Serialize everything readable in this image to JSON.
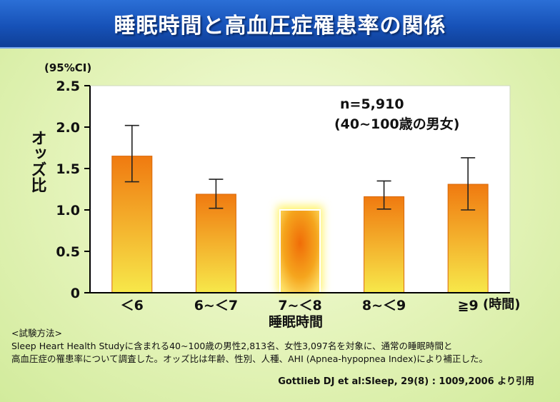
{
  "title": "睡眠時間と高血圧症罹患率の関係",
  "ci_note": "(95%CI)",
  "chart_data": {
    "type": "bar",
    "categories": [
      "＜6",
      "6~＜7",
      "7~＜8",
      "8~＜9",
      "≧9"
    ],
    "values": [
      1.65,
      1.19,
      1.0,
      1.16,
      1.31
    ],
    "ci_low": [
      1.34,
      1.02,
      null,
      1.01,
      1.0
    ],
    "ci_high": [
      2.02,
      1.37,
      null,
      1.35,
      1.63
    ],
    "reference_category": "7~＜8",
    "ylabel": "オッズ比",
    "xlabel": "睡眠時間",
    "x_unit": "(時間)",
    "ylim": [
      0,
      2.5
    ],
    "yticks": [
      "0",
      "0.5",
      "1.0",
      "1.5",
      "2.0",
      "2.5"
    ],
    "ytick_values": [
      0,
      0.5,
      1.0,
      1.5,
      2.0,
      2.5
    ],
    "annotation_line1": "n=5,910",
    "annotation_line2": "(40~100歳の男女)",
    "grid": false,
    "colors": {
      "bar_top": "#f07a10",
      "bar_bottom": "#f7e84a",
      "reference_glow": "#fff89a",
      "plot_bg": "#ffffff"
    }
  },
  "method": {
    "heading": "<試験方法>",
    "line1": "Sleep Heart Health Studyに含まれる40~100歳の男性2,813名、女性3,097名を対象に、通常の睡眠時間と",
    "line2": "高血圧症の罹患率について調査した。オッズ比は年齢、性別、人種、AHI (Apnea-hypopnea Index)により補正した。"
  },
  "citation": "Gottlieb DJ et al:Sleep, 29(8) : 1009,2006 より引用"
}
